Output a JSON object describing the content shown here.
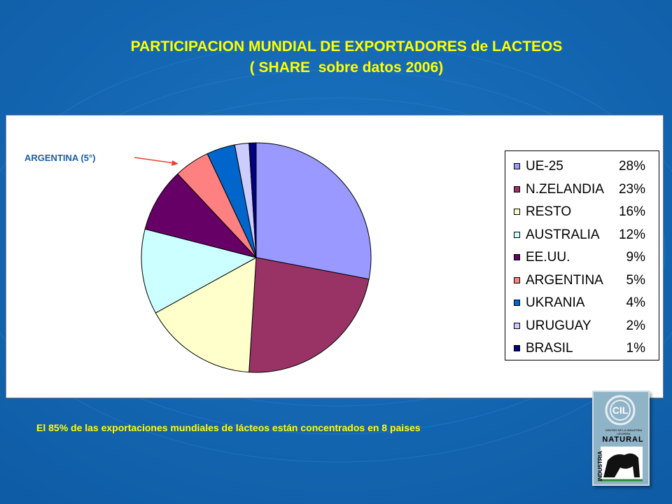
{
  "title": {
    "line1": "PARTICIPACION MUNDIAL DE EXPORTADORES de LACTEOS",
    "line2": "( SHARE  sobre datos 2006)"
  },
  "annotation": "ARGENTINA (5°)",
  "footnote": "El 85% de las exportaciones mundiales de lácteos están concentrados en 8 paises",
  "logo": {
    "small_text": "CENTRO DE LA INDUSTRIA LECHERA",
    "brand": "NATURAL",
    "vertical": "INDUSTRIA",
    "monogram": "CIL"
  },
  "colors": {
    "background": "#1367b4",
    "title": "#ffff00",
    "annotation": "#1a5fa8",
    "arrow": "#e8432e"
  },
  "chart_data": {
    "type": "pie",
    "title": "PARTICIPACION MUNDIAL DE EXPORTADORES de LACTEOS ( SHARE sobre datos 2006)",
    "legend_position": "right",
    "slices": [
      {
        "name": "UE-25",
        "value": 28,
        "label": "28%",
        "color": "#9999ff"
      },
      {
        "name": "N.ZELANDIA",
        "value": 23,
        "label": "23%",
        "color": "#993366"
      },
      {
        "name": "RESTO",
        "value": 16,
        "label": "16%",
        "color": "#ffffcc"
      },
      {
        "name": "AUSTRALIA",
        "value": 12,
        "label": "12%",
        "color": "#ccffff"
      },
      {
        "name": "EE.UU.",
        "value": 9,
        "label": "9%",
        "color": "#660066"
      },
      {
        "name": "ARGENTINA",
        "value": 5,
        "label": "5%",
        "color": "#ff8080"
      },
      {
        "name": "UKRANIA",
        "value": 4,
        "label": "4%",
        "color": "#0066cc"
      },
      {
        "name": "URUGUAY",
        "value": 2,
        "label": "2%",
        "color": "#ccccff"
      },
      {
        "name": "BRASIL",
        "value": 1,
        "label": "1%",
        "color": "#000080"
      }
    ]
  }
}
